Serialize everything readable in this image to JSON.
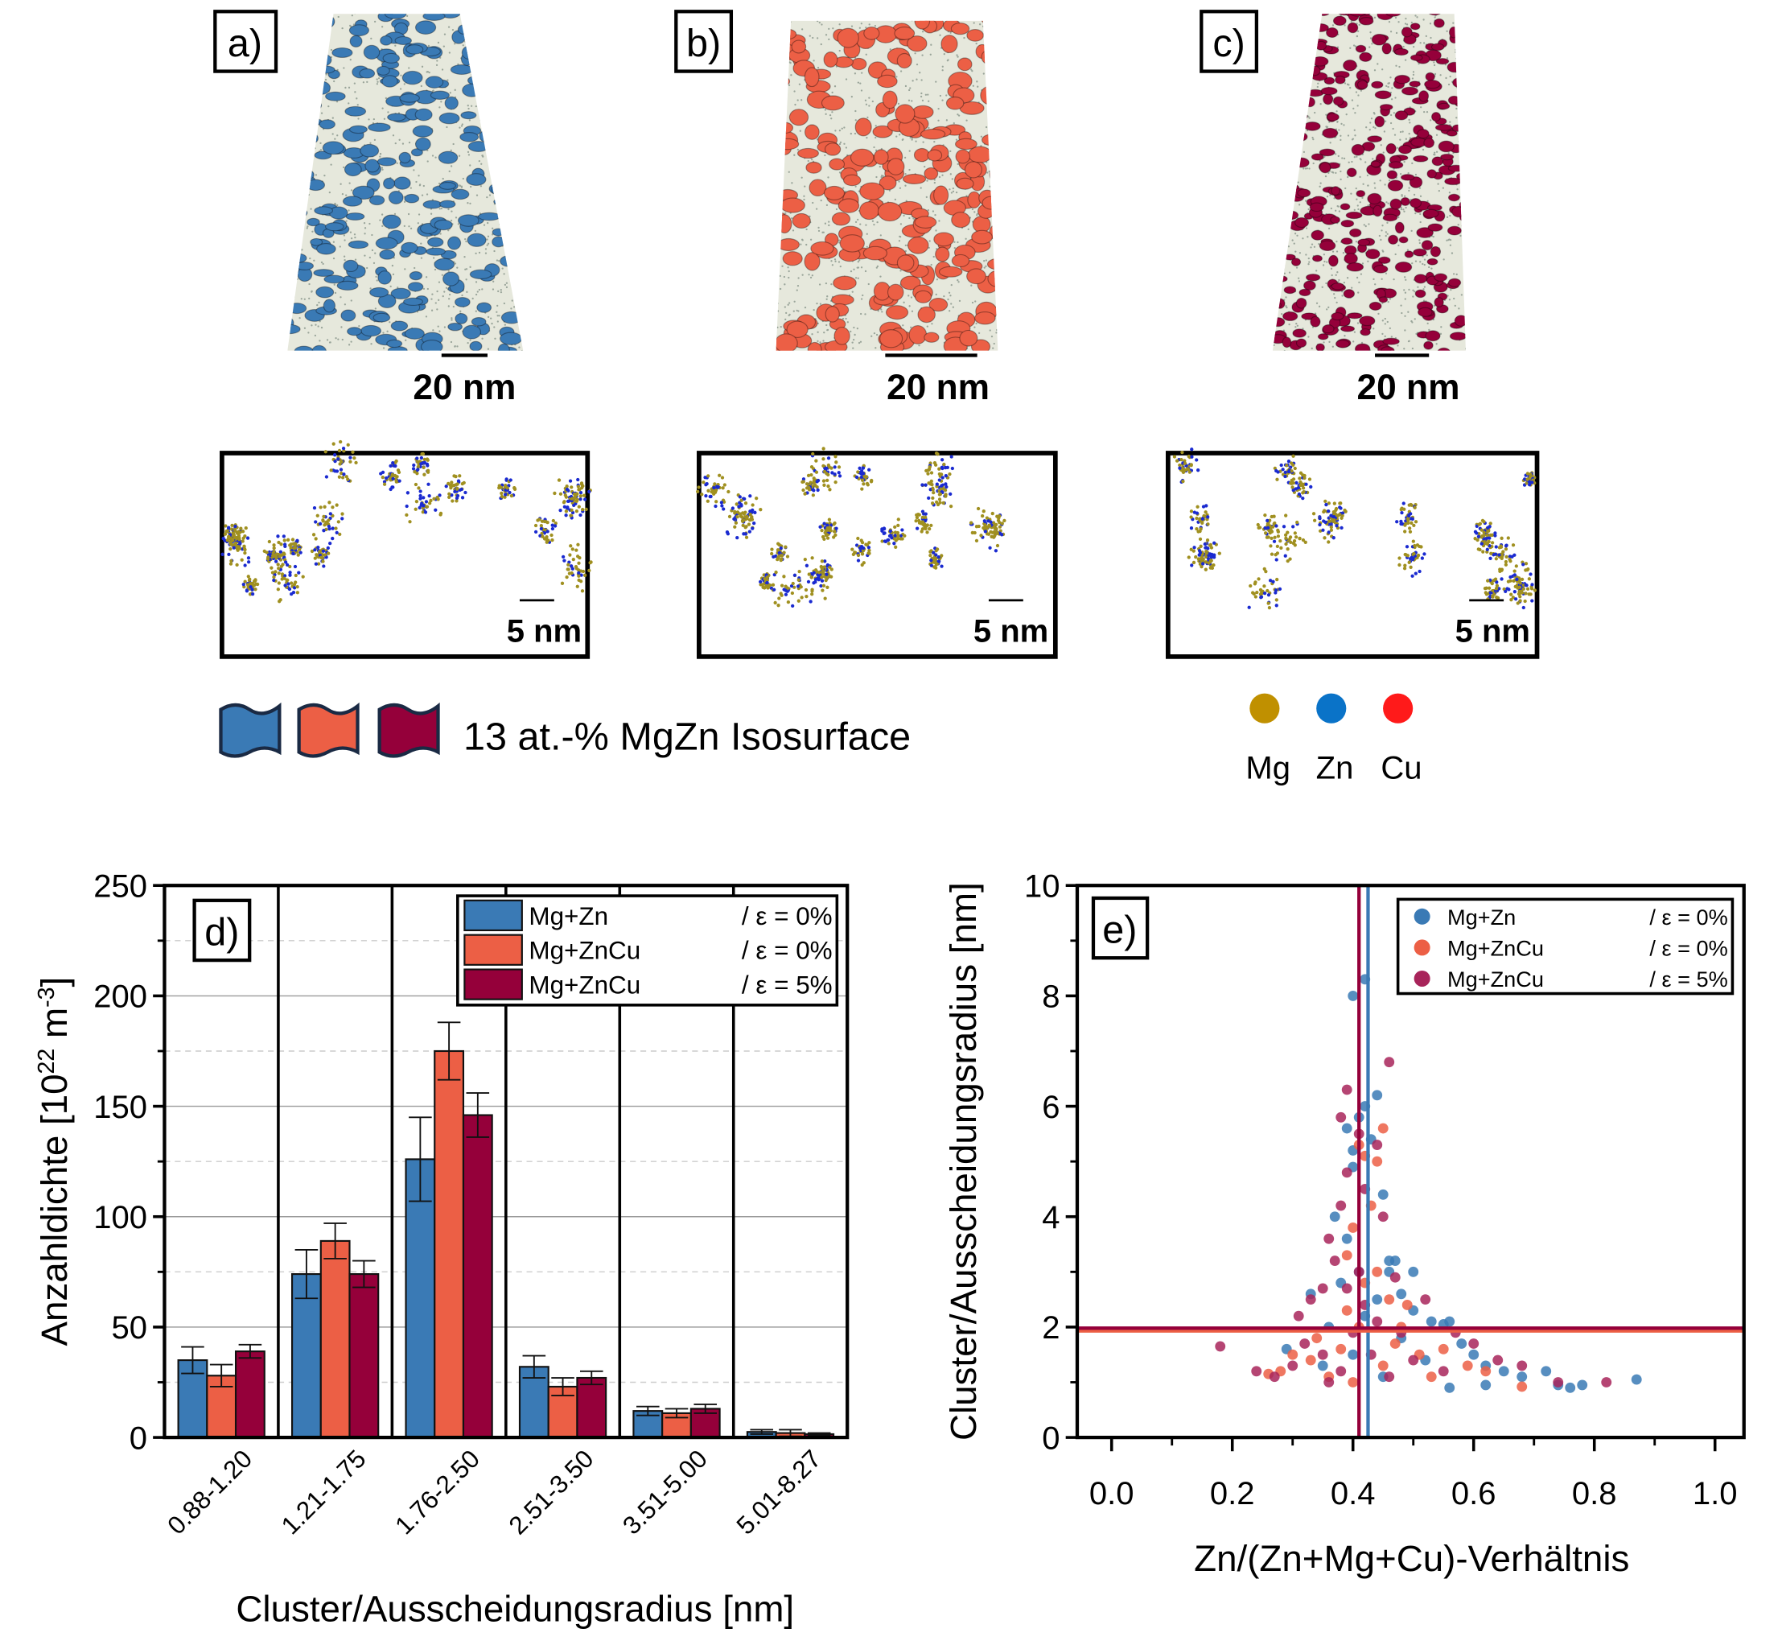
{
  "panels": {
    "a": {
      "label": "a)",
      "scale": "20 nm",
      "inset_scale": "5 nm",
      "color": "#3a7ab5"
    },
    "b": {
      "label": "b)",
      "scale": "20 nm",
      "inset_scale": "5 nm",
      "color": "#ec5f45"
    },
    "c": {
      "label": "c)",
      "scale": "20 nm",
      "inset_scale": "5 nm",
      "color": "#95003a"
    }
  },
  "isosurface_legend": {
    "text": "13 at.-% MgZn Isosurface",
    "colors": [
      "#3a7ab5",
      "#ec5f45",
      "#95003a"
    ]
  },
  "element_legend": [
    {
      "label": "Mg",
      "color": "#c09000"
    },
    {
      "label": "Zn",
      "color": "#0a73c8"
    },
    {
      "label": "Cu",
      "color": "#ff1a1a"
    }
  ],
  "chart_data": [
    {
      "type": "bar",
      "panel_label": "d)",
      "xlabel": "Cluster/Ausscheidungsradius [nm]",
      "ylabel_main": "Anzahldichte [10",
      "ylabel_exp1": "22",
      "ylabel_mid": " m",
      "ylabel_exp2": "-3",
      "ylabel_end": "]",
      "ylim": [
        0,
        250
      ],
      "yticks": [
        "0",
        "50",
        "100",
        "150",
        "200",
        "250"
      ],
      "grid": true,
      "legend_placement": "top-right",
      "categories": [
        "0.88-1.20",
        "1.21-1.75",
        "1.76-2.50",
        "2.51-3.50",
        "3.51-5.00",
        "5.01-8.27"
      ],
      "series": [
        {
          "name": "Mg+Zn",
          "suffix": "/ ε = 0%",
          "color": "#3a7ab5",
          "values": [
            35,
            74,
            126,
            32,
            12,
            2.5
          ],
          "errors": [
            6,
            11,
            19,
            5,
            2,
            1
          ]
        },
        {
          "name": "Mg+ZnCu",
          "suffix": "/ ε = 0%",
          "color": "#ec5f45",
          "values": [
            28,
            89,
            175,
            23,
            11,
            2
          ],
          "errors": [
            5,
            8,
            13,
            4,
            2,
            1.5
          ]
        },
        {
          "name": "Mg+ZnCu",
          "suffix": "/ ε = 5%",
          "color": "#95003a",
          "values": [
            39,
            74,
            146,
            27,
            13,
            1.5
          ],
          "errors": [
            3,
            6,
            10,
            3,
            2,
            0.5
          ]
        }
      ]
    },
    {
      "type": "scatter",
      "panel_label": "e)",
      "xlabel": "Zn/(Zn+Mg+Cu)-Verhältnis",
      "ylabel": "Cluster/Ausscheidungsradius [nm]",
      "xlim": [
        -0.057,
        1.048
      ],
      "ylim": [
        0,
        10
      ],
      "xticks": [
        "0.0",
        "0.2",
        "0.4",
        "0.6",
        "0.8",
        "1.0"
      ],
      "yticks": [
        "0",
        "2",
        "4",
        "6",
        "8",
        "10"
      ],
      "grid": false,
      "legend_placement": "top-right",
      "vertical_lines": [
        {
          "x": 0.425,
          "color": "#3a7ab5"
        },
        {
          "x": 0.41,
          "color": "#95003a"
        }
      ],
      "horizontal_lines": [
        {
          "y": 1.93,
          "color": "#ec5f45"
        },
        {
          "y": 1.98,
          "color": "#95003a"
        }
      ],
      "series": [
        {
          "name": "Mg+Zn",
          "suffix": "/ ε = 0%",
          "color": "#3a7ab5",
          "points": [
            [
              0.42,
              8.3
            ],
            [
              0.4,
              8.0
            ],
            [
              0.44,
              6.2
            ],
            [
              0.42,
              6.0
            ],
            [
              0.43,
              5.4
            ],
            [
              0.41,
              5.8
            ],
            [
              0.39,
              5.6
            ],
            [
              0.4,
              5.2
            ],
            [
              0.4,
              4.9
            ],
            [
              0.45,
              4.4
            ],
            [
              0.37,
              4.0
            ],
            [
              0.39,
              3.6
            ],
            [
              0.46,
              3.2
            ],
            [
              0.47,
              3.2
            ],
            [
              0.46,
              3.0
            ],
            [
              0.5,
              3.0
            ],
            [
              0.33,
              2.6
            ],
            [
              0.48,
              2.6
            ],
            [
              0.5,
              2.3
            ],
            [
              0.53,
              2.1
            ],
            [
              0.55,
              2.05
            ],
            [
              0.56,
              2.1
            ],
            [
              0.29,
              1.6
            ],
            [
              0.58,
              1.7
            ],
            [
              0.6,
              1.5
            ],
            [
              0.62,
              1.3
            ],
            [
              0.65,
              1.2
            ],
            [
              0.68,
              1.1
            ],
            [
              0.72,
              1.2
            ],
            [
              0.74,
              0.95
            ],
            [
              0.76,
              0.9
            ],
            [
              0.78,
              0.95
            ],
            [
              0.87,
              1.05
            ],
            [
              0.56,
              0.9
            ],
            [
              0.62,
              0.95
            ],
            [
              0.45,
              1.1
            ],
            [
              0.4,
              1.5
            ],
            [
              0.42,
              2.2
            ],
            [
              0.38,
              2.8
            ],
            [
              0.44,
              2.5
            ],
            [
              0.35,
              1.3
            ],
            [
              0.41,
              3.0
            ],
            [
              0.48,
              1.8
            ],
            [
              0.52,
              1.4
            ],
            [
              0.36,
              2.0
            ]
          ]
        },
        {
          "name": "Mg+ZnCu",
          "suffix": "/ ε = 0%",
          "color": "#ec5f45",
          "points": [
            [
              0.45,
              5.6
            ],
            [
              0.41,
              5.3
            ],
            [
              0.42,
              5.1
            ],
            [
              0.44,
              5.0
            ],
            [
              0.43,
              4.2
            ],
            [
              0.4,
              3.8
            ],
            [
              0.39,
              3.3
            ],
            [
              0.44,
              3.0
            ],
            [
              0.46,
              2.5
            ],
            [
              0.49,
              2.4
            ],
            [
              0.3,
              1.5
            ],
            [
              0.28,
              1.2
            ],
            [
              0.26,
              1.15
            ],
            [
              0.34,
              1.8
            ],
            [
              0.51,
              1.5
            ],
            [
              0.55,
              1.6
            ],
            [
              0.59,
              1.3
            ],
            [
              0.62,
              1.2
            ],
            [
              0.68,
              0.92
            ],
            [
              0.41,
              2.0
            ],
            [
              0.38,
              1.6
            ],
            [
              0.45,
              1.3
            ],
            [
              0.36,
              1.1
            ],
            [
              0.48,
              2.0
            ],
            [
              0.42,
              2.8
            ],
            [
              0.4,
              1.0
            ],
            [
              0.53,
              1.1
            ],
            [
              0.33,
              1.4
            ],
            [
              0.47,
              1.7
            ],
            [
              0.39,
              2.3
            ]
          ]
        },
        {
          "name": "Mg+ZnCu",
          "suffix": "/ ε = 5%",
          "color": "#a8245a",
          "points": [
            [
              0.39,
              6.3
            ],
            [
              0.46,
              6.8
            ],
            [
              0.38,
              5.8
            ],
            [
              0.41,
              5.5
            ],
            [
              0.44,
              5.3
            ],
            [
              0.39,
              4.8
            ],
            [
              0.42,
              4.5
            ],
            [
              0.38,
              4.2
            ],
            [
              0.45,
              4.0
            ],
            [
              0.36,
              3.6
            ],
            [
              0.37,
              3.2
            ],
            [
              0.35,
              2.7
            ],
            [
              0.33,
              2.5
            ],
            [
              0.31,
              2.2
            ],
            [
              0.18,
              1.65
            ],
            [
              0.24,
              1.2
            ],
            [
              0.27,
              1.1
            ],
            [
              0.3,
              1.3
            ],
            [
              0.32,
              1.7
            ],
            [
              0.47,
              2.9
            ],
            [
              0.52,
              2.5
            ],
            [
              0.57,
              1.9
            ],
            [
              0.6,
              1.7
            ],
            [
              0.64,
              1.4
            ],
            [
              0.68,
              1.3
            ],
            [
              0.74,
              1.0
            ],
            [
              0.82,
              1.0
            ],
            [
              0.4,
              1.9
            ],
            [
              0.42,
              2.4
            ],
            [
              0.41,
              3.0
            ],
            [
              0.43,
              1.5
            ],
            [
              0.38,
              1.2
            ],
            [
              0.46,
              1.1
            ],
            [
              0.5,
              1.4
            ],
            [
              0.55,
              1.2
            ],
            [
              0.35,
              1.5
            ],
            [
              0.44,
              2.1
            ],
            [
              0.39,
              2.7
            ],
            [
              0.48,
              1.9
            ],
            [
              0.36,
              1.0
            ]
          ]
        }
      ]
    }
  ]
}
